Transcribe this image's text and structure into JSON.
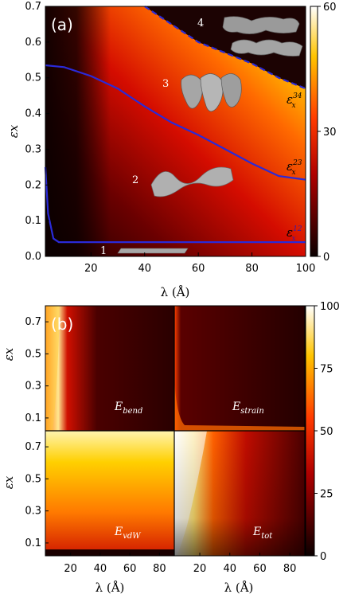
{
  "chart_data": [
    {
      "id": "a",
      "type": "heatmap",
      "panel_label": "(a)",
      "xlabel": "λ (Å)",
      "ylabel": "εx",
      "xlim": [
        3,
        100
      ],
      "ylim": [
        0,
        0.7
      ],
      "x_ticks": [
        "20",
        "40",
        "60",
        "80",
        "100"
      ],
      "y_ticks": [
        "0.0",
        "0.1",
        "0.2",
        "0.3",
        "0.4",
        "0.5",
        "0.6",
        "0.7"
      ],
      "colorbar": {
        "range": [
          0,
          60
        ],
        "ticks": [
          "0",
          "30",
          "60"
        ]
      },
      "colormap": "hot",
      "phase_numbers": [
        "1",
        "2",
        "3",
        "4"
      ],
      "boundaries": [
        {
          "name": "ε_x^12",
          "style": "solid",
          "color": "#2a2ad8",
          "x": [
            3,
            4,
            6,
            8,
            10,
            20,
            40,
            60,
            80,
            100
          ],
          "y": [
            0.25,
            0.12,
            0.05,
            0.04,
            0.04,
            0.04,
            0.04,
            0.04,
            0.04,
            0.04
          ]
        },
        {
          "name": "ε_x^23",
          "style": "solid",
          "color": "#2a2ad8",
          "x": [
            3,
            10,
            20,
            30,
            40,
            50,
            60,
            70,
            80,
            90,
            100
          ],
          "y": [
            0.535,
            0.53,
            0.505,
            0.47,
            0.42,
            0.375,
            0.34,
            0.3,
            0.26,
            0.225,
            0.215
          ]
        },
        {
          "name": "ε_x^34",
          "style": "dashed",
          "color": "#2a2ad8",
          "x": [
            40,
            50,
            60,
            70,
            80,
            90,
            100
          ],
          "y": [
            0.7,
            0.65,
            0.6,
            0.57,
            0.54,
            0.5,
            0.47
          ]
        }
      ]
    },
    {
      "id": "b",
      "type": "heatmap",
      "panel_label": "(b)",
      "xlabel": "λ (Å)",
      "ylabel": "εx",
      "colorbar": {
        "range": [
          0,
          100
        ],
        "ticks": [
          "0",
          "25",
          "50",
          "75",
          "100"
        ]
      },
      "subplots": [
        {
          "name": "E_bend",
          "sub": "bend",
          "pattern": "bend",
          "x_ticks": [],
          "y_ticks": [
            "0.1",
            "0.3",
            "0.5",
            "0.7"
          ]
        },
        {
          "name": "E_strain",
          "sub": "strain",
          "pattern": "strain",
          "x_ticks": [],
          "y_ticks": []
        },
        {
          "name": "E_vdW",
          "sub": "vdW",
          "pattern": "vdw",
          "x_ticks": [
            "20",
            "40",
            "60",
            "80"
          ],
          "y_ticks": [
            "0.1",
            "0.3",
            "0.5",
            "0.7"
          ]
        },
        {
          "name": "E_tot",
          "sub": "tot",
          "pattern": "tot",
          "x_ticks": [
            "20",
            "40",
            "60",
            "80"
          ],
          "y_ticks": []
        }
      ]
    }
  ]
}
